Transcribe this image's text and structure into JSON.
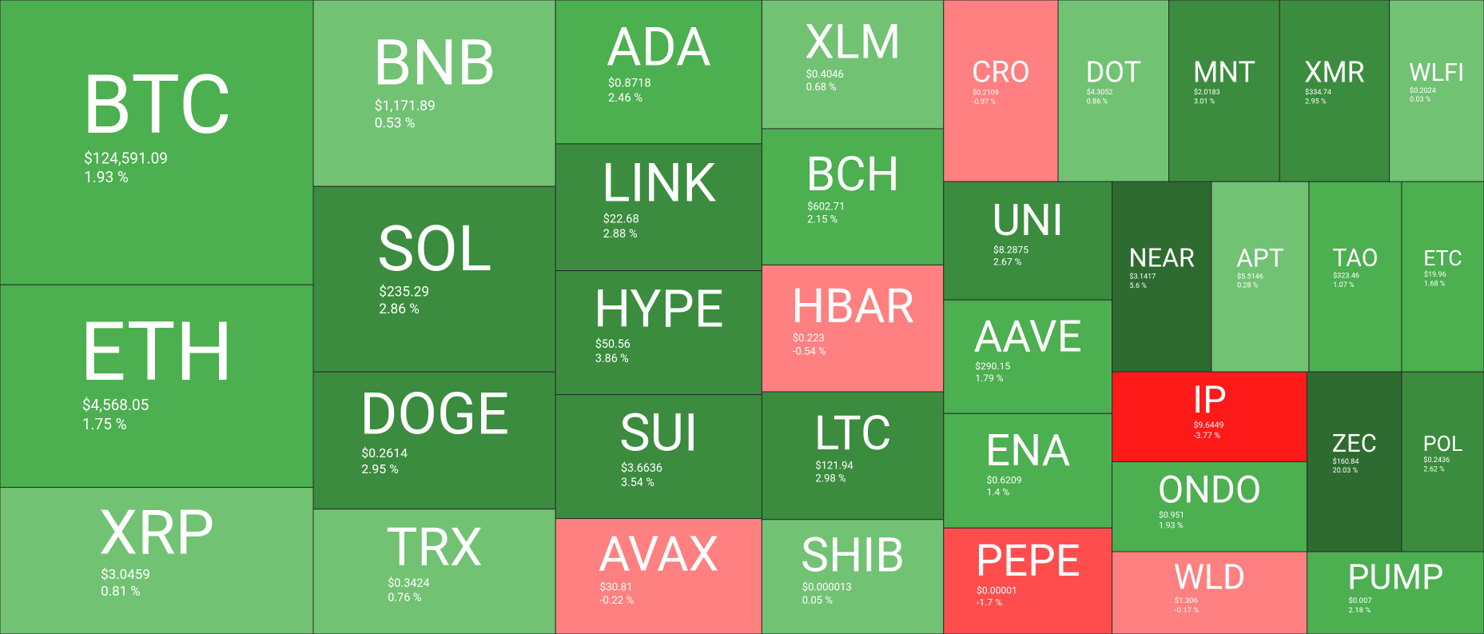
{
  "chart_data": {
    "type": "treemap",
    "categories": [
      "BTC",
      "ETH",
      "XRP",
      "BNB",
      "SOL",
      "DOGE",
      "TRX",
      "ADA",
      "LINK",
      "HYPE",
      "SUI",
      "AVAX",
      "XLM",
      "BCH",
      "HBAR",
      "LTC",
      "SHIB",
      "CRO",
      "DOT",
      "MNT",
      "XMR",
      "WLFI",
      "UNI",
      "AAVE",
      "ENA",
      "PEPE",
      "NEAR",
      "APT",
      "TAO",
      "ETC",
      "IP",
      "ONDO",
      "WLD",
      "ZEC",
      "POL",
      "PUMP"
    ],
    "prices": [
      "$124,591.09",
      "$4,568.05",
      "$3.0459",
      "$1,171.89",
      "$235.29",
      "$0.2614",
      "$0.3424",
      "$0.8718",
      "$22.68",
      "$50.56",
      "$3.6636",
      "$30.81",
      "$0.4046",
      "$602.71",
      "$0.223",
      "$121.94",
      "$0.000013",
      "$0.2109",
      "$4.3052",
      "$2.0183",
      "$334.74",
      "$0.2024",
      "$8.2875",
      "$290.15",
      "$0.6209",
      "$0.00001",
      "$3.1417",
      "$5.5146",
      "$323.46",
      "$19.96",
      "$9.6449",
      "$0.951",
      "$1.306",
      "$160.84",
      "$0.2436",
      "$0.007"
    ],
    "values": [
      1.93,
      1.75,
      0.81,
      0.53,
      2.86,
      2.95,
      0.76,
      2.46,
      2.88,
      3.86,
      3.54,
      -0.22,
      0.68,
      2.15,
      -0.54,
      2.98,
      0.05,
      -0.97,
      0.86,
      3.01,
      2.95,
      0.03,
      2.67,
      1.79,
      1.4,
      -1.7,
      5.6,
      0.28,
      1.07,
      1.68,
      -3.77,
      1.93,
      -0.17,
      20.03,
      2.62,
      2.18
    ],
    "value_labels": [
      "1.93 %",
      "1.75 %",
      "0.81 %",
      "0.53 %",
      "2.86 %",
      "2.95 %",
      "0.76 %",
      "2.46 %",
      "2.88 %",
      "3.86 %",
      "3.54 %",
      "-0.22 %",
      "0.68 %",
      "2.15 %",
      "-0.54 %",
      "2.98 %",
      "0.05 %",
      "-0.97 %",
      "0.86 %",
      "3.01 %",
      "2.95 %",
      "0.03 %",
      "2.67 %",
      "1.79 %",
      "1.4 %",
      "-1.7 %",
      "5.6 %",
      "0.28 %",
      "1.07 %",
      "1.68 %",
      "-3.77 %",
      "1.93 %",
      "-0.17 %",
      "20.03 %",
      "2.62 %",
      "2.18 %"
    ],
    "colors": [
      "#4caf50",
      "#4caf50",
      "#72c274",
      "#72c274",
      "#3b8c3e",
      "#3b8c3e",
      "#72c274",
      "#4caf50",
      "#3b8c3e",
      "#3b8c3e",
      "#3b8c3e",
      "#ff8080",
      "#72c274",
      "#4caf50",
      "#ff8080",
      "#3b8c3e",
      "#72c274",
      "#ff8080",
      "#72c274",
      "#3b8c3e",
      "#3b8c3e",
      "#72c274",
      "#3b8c3e",
      "#4caf50",
      "#4caf50",
      "#ff4d4d",
      "#2e6b30",
      "#72c274",
      "#4caf50",
      "#4caf50",
      "#ff1a1a",
      "#4caf50",
      "#ff8080",
      "#2e6b30",
      "#3b8c3e",
      "#4caf50"
    ]
  }
}
